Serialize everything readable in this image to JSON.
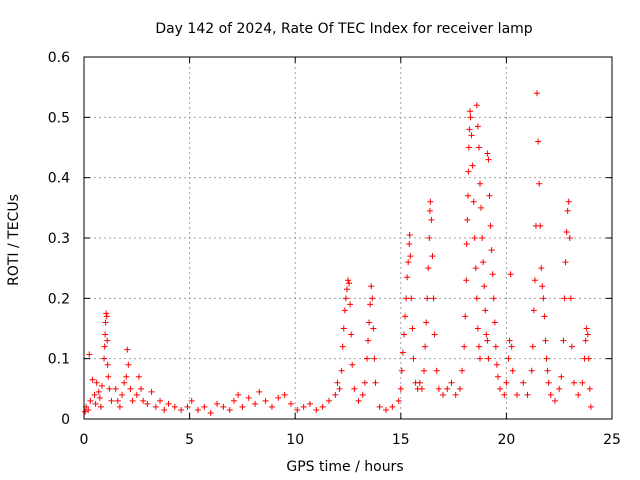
{
  "chart_data": {
    "type": "scatter",
    "title": "Day 142 of 2024, Rate Of TEC Index for receiver lamp",
    "xlabel": "GPS time / hours",
    "ylabel": "ROTI / TECUs",
    "xlim": [
      0,
      25
    ],
    "ylim": [
      0,
      0.6
    ],
    "xticks": [
      0,
      5,
      10,
      15,
      20,
      25
    ],
    "xtick_labels": [
      "0",
      "5",
      "10",
      "15",
      "20",
      "25"
    ],
    "yticks": [
      0,
      0.1,
      0.2,
      0.3,
      0.4,
      0.5,
      0.6
    ],
    "ytick_labels": [
      "0",
      "0.1",
      "0.2",
      "0.3",
      "0.4",
      "0.5",
      "0.6"
    ],
    "grid": true,
    "marker": "+",
    "color": "#ff0000",
    "series": [
      {
        "name": "ROTI",
        "points": [
          [
            0.05,
            0.012
          ],
          [
            0.1,
            0.02
          ],
          [
            0.2,
            0.015
          ],
          [
            0.25,
            0.107
          ],
          [
            0.3,
            0.03
          ],
          [
            0.4,
            0.065
          ],
          [
            0.5,
            0.04
          ],
          [
            0.55,
            0.025
          ],
          [
            0.6,
            0.06
          ],
          [
            0.7,
            0.045
          ],
          [
            0.75,
            0.035
          ],
          [
            0.8,
            0.02
          ],
          [
            0.85,
            0.055
          ],
          [
            0.95,
            0.1
          ],
          [
            0.98,
            0.12
          ],
          [
            1.0,
            0.14
          ],
          [
            1.02,
            0.16
          ],
          [
            1.05,
            0.175
          ],
          [
            1.08,
            0.17
          ],
          [
            1.1,
            0.13
          ],
          [
            1.12,
            0.09
          ],
          [
            1.15,
            0.07
          ],
          [
            1.2,
            0.05
          ],
          [
            1.3,
            0.03
          ],
          [
            1.5,
            0.05
          ],
          [
            1.6,
            0.03
          ],
          [
            1.7,
            0.02
          ],
          [
            1.8,
            0.04
          ],
          [
            1.9,
            0.06
          ],
          [
            2.0,
            0.07
          ],
          [
            2.05,
            0.115
          ],
          [
            2.1,
            0.09
          ],
          [
            2.2,
            0.05
          ],
          [
            2.3,
            0.03
          ],
          [
            2.5,
            0.04
          ],
          [
            2.6,
            0.07
          ],
          [
            2.7,
            0.05
          ],
          [
            2.8,
            0.03
          ],
          [
            3.0,
            0.025
          ],
          [
            3.2,
            0.045
          ],
          [
            3.4,
            0.02
          ],
          [
            3.6,
            0.03
          ],
          [
            3.8,
            0.015
          ],
          [
            4.0,
            0.025
          ],
          [
            4.3,
            0.02
          ],
          [
            4.6,
            0.015
          ],
          [
            4.9,
            0.02
          ],
          [
            5.1,
            0.03
          ],
          [
            5.4,
            0.015
          ],
          [
            5.7,
            0.02
          ],
          [
            6.0,
            0.01
          ],
          [
            6.3,
            0.025
          ],
          [
            6.6,
            0.02
          ],
          [
            6.9,
            0.015
          ],
          [
            7.1,
            0.03
          ],
          [
            7.3,
            0.04
          ],
          [
            7.5,
            0.02
          ],
          [
            7.8,
            0.035
          ],
          [
            8.1,
            0.025
          ],
          [
            8.3,
            0.045
          ],
          [
            8.6,
            0.03
          ],
          [
            8.9,
            0.02
          ],
          [
            9.2,
            0.035
          ],
          [
            9.5,
            0.04
          ],
          [
            9.8,
            0.025
          ],
          [
            10.1,
            0.015
          ],
          [
            10.4,
            0.02
          ],
          [
            10.7,
            0.025
          ],
          [
            11.0,
            0.015
          ],
          [
            11.3,
            0.02
          ],
          [
            11.6,
            0.03
          ],
          [
            11.9,
            0.04
          ],
          [
            12.0,
            0.06
          ],
          [
            12.1,
            0.05
          ],
          [
            12.2,
            0.08
          ],
          [
            12.25,
            0.12
          ],
          [
            12.3,
            0.15
          ],
          [
            12.35,
            0.18
          ],
          [
            12.4,
            0.2
          ],
          [
            12.45,
            0.215
          ],
          [
            12.5,
            0.23
          ],
          [
            12.55,
            0.225
          ],
          [
            12.6,
            0.19
          ],
          [
            12.65,
            0.14
          ],
          [
            12.7,
            0.09
          ],
          [
            12.8,
            0.05
          ],
          [
            13.0,
            0.03
          ],
          [
            13.2,
            0.04
          ],
          [
            13.3,
            0.06
          ],
          [
            13.4,
            0.1
          ],
          [
            13.45,
            0.13
          ],
          [
            13.5,
            0.16
          ],
          [
            13.55,
            0.19
          ],
          [
            13.6,
            0.22
          ],
          [
            13.65,
            0.2
          ],
          [
            13.7,
            0.15
          ],
          [
            13.75,
            0.1
          ],
          [
            13.8,
            0.06
          ],
          [
            14.0,
            0.02
          ],
          [
            14.3,
            0.015
          ],
          [
            14.6,
            0.02
          ],
          [
            14.9,
            0.03
          ],
          [
            15.0,
            0.05
          ],
          [
            15.05,
            0.08
          ],
          [
            15.1,
            0.11
          ],
          [
            15.15,
            0.14
          ],
          [
            15.2,
            0.17
          ],
          [
            15.25,
            0.2
          ],
          [
            15.3,
            0.235
          ],
          [
            15.35,
            0.26
          ],
          [
            15.4,
            0.29
          ],
          [
            15.42,
            0.305
          ],
          [
            15.45,
            0.27
          ],
          [
            15.5,
            0.2
          ],
          [
            15.55,
            0.15
          ],
          [
            15.6,
            0.1
          ],
          [
            15.7,
            0.06
          ],
          [
            15.8,
            0.05
          ],
          [
            15.9,
            0.06
          ],
          [
            16.0,
            0.05
          ],
          [
            16.1,
            0.08
          ],
          [
            16.15,
            0.12
          ],
          [
            16.2,
            0.16
          ],
          [
            16.25,
            0.2
          ],
          [
            16.3,
            0.25
          ],
          [
            16.35,
            0.3
          ],
          [
            16.38,
            0.345
          ],
          [
            16.4,
            0.36
          ],
          [
            16.45,
            0.33
          ],
          [
            16.5,
            0.27
          ],
          [
            16.55,
            0.2
          ],
          [
            16.6,
            0.14
          ],
          [
            16.7,
            0.08
          ],
          [
            16.8,
            0.05
          ],
          [
            17.0,
            0.04
          ],
          [
            17.2,
            0.05
          ],
          [
            17.4,
            0.06
          ],
          [
            17.6,
            0.04
          ],
          [
            17.8,
            0.05
          ],
          [
            17.9,
            0.08
          ],
          [
            18.0,
            0.12
          ],
          [
            18.05,
            0.17
          ],
          [
            18.1,
            0.23
          ],
          [
            18.12,
            0.29
          ],
          [
            18.15,
            0.33
          ],
          [
            18.18,
            0.37
          ],
          [
            18.2,
            0.41
          ],
          [
            18.22,
            0.45
          ],
          [
            18.25,
            0.48
          ],
          [
            18.28,
            0.51
          ],
          [
            18.3,
            0.5
          ],
          [
            18.35,
            0.47
          ],
          [
            18.4,
            0.42
          ],
          [
            18.45,
            0.36
          ],
          [
            18.5,
            0.3
          ],
          [
            18.55,
            0.25
          ],
          [
            18.6,
            0.2
          ],
          [
            18.65,
            0.15
          ],
          [
            18.7,
            0.12
          ],
          [
            18.75,
            0.1
          ],
          [
            18.6,
            0.52
          ],
          [
            18.65,
            0.485
          ],
          [
            18.7,
            0.45
          ],
          [
            18.75,
            0.39
          ],
          [
            18.8,
            0.35
          ],
          [
            18.85,
            0.3
          ],
          [
            18.9,
            0.26
          ],
          [
            18.95,
            0.22
          ],
          [
            19.0,
            0.18
          ],
          [
            19.05,
            0.14
          ],
          [
            19.1,
            0.13
          ],
          [
            19.15,
            0.1
          ],
          [
            19.1,
            0.44
          ],
          [
            19.15,
            0.43
          ],
          [
            19.2,
            0.37
          ],
          [
            19.25,
            0.32
          ],
          [
            19.3,
            0.28
          ],
          [
            19.35,
            0.24
          ],
          [
            19.4,
            0.2
          ],
          [
            19.45,
            0.16
          ],
          [
            19.5,
            0.12
          ],
          [
            19.55,
            0.09
          ],
          [
            19.6,
            0.07
          ],
          [
            19.7,
            0.05
          ],
          [
            19.9,
            0.04
          ],
          [
            20.0,
            0.06
          ],
          [
            20.1,
            0.1
          ],
          [
            20.15,
            0.13
          ],
          [
            20.2,
            0.24
          ],
          [
            20.25,
            0.12
          ],
          [
            20.3,
            0.08
          ],
          [
            20.5,
            0.04
          ],
          [
            20.8,
            0.06
          ],
          [
            21.0,
            0.04
          ],
          [
            21.2,
            0.08
          ],
          [
            21.25,
            0.12
          ],
          [
            21.3,
            0.18
          ],
          [
            21.35,
            0.23
          ],
          [
            21.4,
            0.32
          ],
          [
            21.45,
            0.54
          ],
          [
            21.5,
            0.46
          ],
          [
            21.55,
            0.39
          ],
          [
            21.6,
            0.32
          ],
          [
            21.65,
            0.25
          ],
          [
            21.7,
            0.22
          ],
          [
            21.75,
            0.2
          ],
          [
            21.8,
            0.17
          ],
          [
            21.85,
            0.13
          ],
          [
            21.9,
            0.1
          ],
          [
            21.95,
            0.08
          ],
          [
            22.0,
            0.06
          ],
          [
            22.1,
            0.04
          ],
          [
            22.3,
            0.03
          ],
          [
            22.5,
            0.05
          ],
          [
            22.6,
            0.07
          ],
          [
            22.7,
            0.13
          ],
          [
            22.75,
            0.2
          ],
          [
            22.8,
            0.26
          ],
          [
            22.85,
            0.31
          ],
          [
            22.9,
            0.345
          ],
          [
            22.95,
            0.36
          ],
          [
            23.0,
            0.3
          ],
          [
            23.05,
            0.2
          ],
          [
            23.1,
            0.12
          ],
          [
            23.2,
            0.06
          ],
          [
            23.4,
            0.04
          ],
          [
            23.6,
            0.06
          ],
          [
            23.7,
            0.1
          ],
          [
            23.75,
            0.13
          ],
          [
            23.8,
            0.15
          ],
          [
            23.85,
            0.14
          ],
          [
            23.9,
            0.1
          ],
          [
            23.95,
            0.05
          ],
          [
            24.0,
            0.02
          ]
        ]
      }
    ]
  }
}
